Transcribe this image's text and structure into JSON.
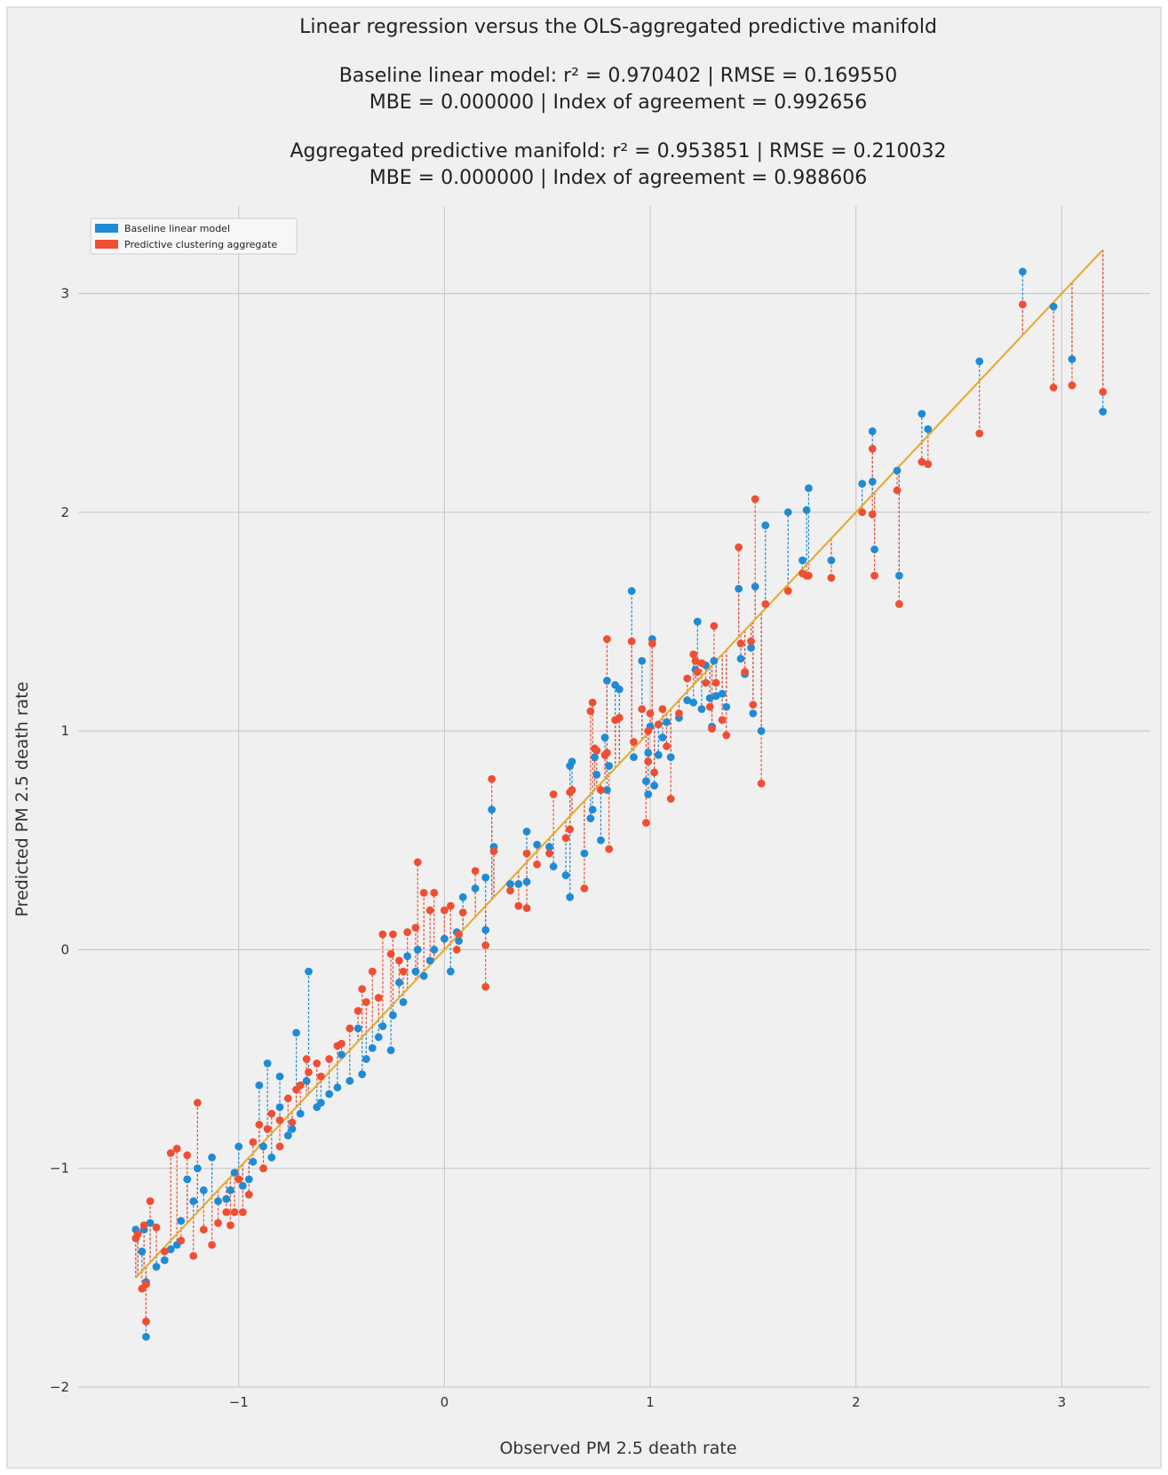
{
  "colors": {
    "figure_bg": "#f0f0f0",
    "border": "#d8d8d8",
    "grid": "#cbcbcb",
    "baseline": "#1f8bd4",
    "cluster": "#f04e33",
    "fit_line": "#e5ae38"
  },
  "chart_data": {
    "type": "scatter",
    "title": "Linear regression versus the OLS-aggregated predictive manifold",
    "subtitle_lines": [
      "Baseline linear model: r² = 0.970402  |  RMSE = 0.169550",
      "MBE = 0.000000  |  Index of agreement = 0.992656",
      "Aggregated predictive manifold: r² = 0.953851  |  RMSE = 0.210032",
      "MBE = 0.000000  |  Index of agreement = 0.988606"
    ],
    "xlabel": "Observed PM 2.5 death rate",
    "ylabel": "Predicted PM 2.5 death rate",
    "xlim": [
      -1.78,
      3.43
    ],
    "ylim": [
      -2.0,
      3.4
    ],
    "xticks": [
      -1,
      0,
      1,
      2,
      3
    ],
    "yticks": [
      -2,
      -1,
      0,
      1,
      2,
      3
    ],
    "xtick_labels": [
      "−1",
      "0",
      "1",
      "2",
      "3"
    ],
    "ytick_labels": [
      "−2",
      "−1",
      "0",
      "1",
      "2",
      "3"
    ],
    "grid": true,
    "legend_position": "upper-left",
    "legend": [
      "Baseline linear model",
      "Predictive clustering aggregate"
    ],
    "fit_line": {
      "x": [
        -1.5,
        3.2
      ],
      "y": [
        -1.5,
        3.2
      ]
    },
    "series": [
      {
        "name": "Baseline linear model",
        "points": [
          [
            2.81,
            3.1
          ],
          [
            2.96,
            2.94
          ],
          [
            3.05,
            2.7
          ],
          [
            3.2,
            2.46
          ],
          [
            2.6,
            2.69
          ],
          [
            2.32,
            2.45
          ],
          [
            2.35,
            2.38
          ],
          [
            2.2,
            2.19
          ],
          [
            2.08,
            2.37
          ],
          [
            2.03,
            2.13
          ],
          [
            2.08,
            2.14
          ],
          [
            2.09,
            1.83
          ],
          [
            2.21,
            1.71
          ],
          [
            1.77,
            2.11
          ],
          [
            1.76,
            2.01
          ],
          [
            1.74,
            1.78
          ],
          [
            1.67,
            2.0
          ],
          [
            1.56,
            1.94
          ],
          [
            1.88,
            1.78
          ],
          [
            1.51,
            1.66
          ],
          [
            1.43,
            1.65
          ],
          [
            0.91,
            1.64
          ],
          [
            1.01,
            1.42
          ],
          [
            1.23,
            1.5
          ],
          [
            0.96,
            1.32
          ],
          [
            1.49,
            1.38
          ],
          [
            1.46,
            1.26
          ],
          [
            1.22,
            1.28
          ],
          [
            1.31,
            1.32
          ],
          [
            1.27,
            1.3
          ],
          [
            1.44,
            1.33
          ],
          [
            1.21,
            1.13
          ],
          [
            1.25,
            1.1
          ],
          [
            1.18,
            1.14
          ],
          [
            1.32,
            1.16
          ],
          [
            1.37,
            1.11
          ],
          [
            1.35,
            1.17
          ],
          [
            1.29,
            1.15
          ],
          [
            1.5,
            1.08
          ],
          [
            1.54,
            1.0
          ],
          [
            1.3,
            1.02
          ],
          [
            1.14,
            1.06
          ],
          [
            1.08,
            1.04
          ],
          [
            1.0,
            1.02
          ],
          [
            1.06,
            0.97
          ],
          [
            0.99,
            0.9
          ],
          [
            1.04,
            0.89
          ],
          [
            1.1,
            0.88
          ],
          [
            0.79,
            1.23
          ],
          [
            0.83,
            1.21
          ],
          [
            0.85,
            1.19
          ],
          [
            0.78,
            0.97
          ],
          [
            0.73,
            0.88
          ],
          [
            0.74,
            0.8
          ],
          [
            0.92,
            0.88
          ],
          [
            0.98,
            0.77
          ],
          [
            1.02,
            0.75
          ],
          [
            0.99,
            0.71
          ],
          [
            0.79,
            0.73
          ],
          [
            0.8,
            0.84
          ],
          [
            0.72,
            0.64
          ],
          [
            0.71,
            0.6
          ],
          [
            0.76,
            0.5
          ],
          [
            0.68,
            0.44
          ],
          [
            0.61,
            0.84
          ],
          [
            0.62,
            0.86
          ],
          [
            0.59,
            0.34
          ],
          [
            0.61,
            0.24
          ],
          [
            0.53,
            0.38
          ],
          [
            0.51,
            0.47
          ],
          [
            0.45,
            0.48
          ],
          [
            0.4,
            0.54
          ],
          [
            0.4,
            0.31
          ],
          [
            0.36,
            0.3
          ],
          [
            0.32,
            0.3
          ],
          [
            0.23,
            0.64
          ],
          [
            0.24,
            0.47
          ],
          [
            0.2,
            0.33
          ],
          [
            0.2,
            0.09
          ],
          [
            0.15,
            0.28
          ],
          [
            0.09,
            0.24
          ],
          [
            0.07,
            0.04
          ],
          [
            0.06,
            0.08
          ],
          [
            0.03,
            -0.1
          ],
          [
            0.0,
            0.05
          ],
          [
            -0.05,
            0.0
          ],
          [
            -0.1,
            -0.12
          ],
          [
            -0.13,
            0.0
          ],
          [
            -0.07,
            -0.05
          ],
          [
            -0.14,
            -0.1
          ],
          [
            -0.18,
            -0.03
          ],
          [
            -0.22,
            -0.15
          ],
          [
            -0.2,
            -0.24
          ],
          [
            -0.25,
            -0.3
          ],
          [
            -0.26,
            -0.46
          ],
          [
            -0.3,
            -0.35
          ],
          [
            -0.32,
            -0.4
          ],
          [
            -0.35,
            -0.45
          ],
          [
            -0.38,
            -0.5
          ],
          [
            -0.4,
            -0.57
          ],
          [
            -0.42,
            -0.36
          ],
          [
            -0.46,
            -0.6
          ],
          [
            -0.5,
            -0.48
          ],
          [
            -0.52,
            -0.63
          ],
          [
            -0.56,
            -0.66
          ],
          [
            -0.6,
            -0.7
          ],
          [
            -0.62,
            -0.72
          ],
          [
            -0.66,
            -0.1
          ],
          [
            -0.67,
            -0.6
          ],
          [
            -0.7,
            -0.75
          ],
          [
            -0.72,
            -0.38
          ],
          [
            -0.74,
            -0.82
          ],
          [
            -0.76,
            -0.85
          ],
          [
            -0.8,
            -0.72
          ],
          [
            -0.8,
            -0.58
          ],
          [
            -0.84,
            -0.95
          ],
          [
            -0.86,
            -0.52
          ],
          [
            -0.88,
            -0.9
          ],
          [
            -0.9,
            -0.62
          ],
          [
            -0.93,
            -0.97
          ],
          [
            -0.95,
            -1.05
          ],
          [
            -0.98,
            -1.08
          ],
          [
            -1.0,
            -0.9
          ],
          [
            -1.02,
            -1.02
          ],
          [
            -1.04,
            -1.1
          ],
          [
            -1.06,
            -1.14
          ],
          [
            -1.1,
            -1.15
          ],
          [
            -1.13,
            -0.95
          ],
          [
            -1.17,
            -1.1
          ],
          [
            -1.2,
            -1.0
          ],
          [
            -1.22,
            -1.15
          ],
          [
            -1.25,
            -1.05
          ],
          [
            -1.28,
            -1.24
          ],
          [
            -1.3,
            -1.35
          ],
          [
            -1.33,
            -1.37
          ],
          [
            -1.36,
            -1.42
          ],
          [
            -1.4,
            -1.45
          ],
          [
            -1.43,
            -1.25
          ],
          [
            -1.46,
            -1.28
          ],
          [
            -1.47,
            -1.38
          ],
          [
            -1.45,
            -1.52
          ],
          [
            -1.45,
            -1.77
          ],
          [
            -1.5,
            -1.28
          ],
          [
            -1.49,
            -1.3
          ]
        ]
      },
      {
        "name": "Predictive clustering aggregate",
        "points": [
          [
            2.81,
            2.95
          ],
          [
            2.96,
            2.57
          ],
          [
            3.05,
            2.58
          ],
          [
            3.2,
            2.55
          ],
          [
            2.6,
            2.36
          ],
          [
            2.32,
            2.23
          ],
          [
            2.35,
            2.22
          ],
          [
            2.2,
            2.1
          ],
          [
            2.08,
            2.29
          ],
          [
            2.03,
            2.0
          ],
          [
            2.08,
            1.99
          ],
          [
            2.09,
            1.71
          ],
          [
            2.21,
            1.58
          ],
          [
            1.77,
            1.71
          ],
          [
            1.76,
            1.71
          ],
          [
            1.74,
            1.72
          ],
          [
            1.67,
            1.64
          ],
          [
            1.56,
            1.58
          ],
          [
            1.88,
            1.7
          ],
          [
            1.51,
            2.06
          ],
          [
            1.43,
            1.84
          ],
          [
            0.91,
            1.41
          ],
          [
            1.01,
            1.4
          ],
          [
            1.23,
            1.27
          ],
          [
            0.96,
            1.1
          ],
          [
            1.49,
            1.41
          ],
          [
            1.46,
            1.27
          ],
          [
            1.22,
            1.32
          ],
          [
            1.31,
            1.48
          ],
          [
            1.27,
            1.22
          ],
          [
            1.44,
            1.4
          ],
          [
            1.21,
            1.35
          ],
          [
            1.25,
            1.31
          ],
          [
            1.18,
            1.24
          ],
          [
            1.32,
            1.22
          ],
          [
            1.37,
            0.98
          ],
          [
            1.35,
            1.05
          ],
          [
            1.29,
            1.11
          ],
          [
            1.5,
            1.12
          ],
          [
            1.54,
            0.76
          ],
          [
            1.3,
            1.01
          ],
          [
            1.14,
            1.08
          ],
          [
            1.08,
            0.93
          ],
          [
            1.0,
            1.08
          ],
          [
            1.06,
            1.1
          ],
          [
            0.99,
            1.0
          ],
          [
            1.04,
            1.03
          ],
          [
            1.1,
            0.69
          ],
          [
            0.79,
            1.42
          ],
          [
            0.83,
            1.05
          ],
          [
            0.85,
            1.06
          ],
          [
            0.78,
            0.89
          ],
          [
            0.73,
            0.92
          ],
          [
            0.74,
            0.91
          ],
          [
            0.92,
            0.95
          ],
          [
            0.98,
            0.58
          ],
          [
            1.02,
            0.81
          ],
          [
            0.99,
            0.86
          ],
          [
            0.79,
            0.9
          ],
          [
            0.8,
            0.46
          ],
          [
            0.72,
            1.13
          ],
          [
            0.71,
            1.09
          ],
          [
            0.76,
            0.73
          ],
          [
            0.68,
            0.28
          ],
          [
            0.61,
            0.72
          ],
          [
            0.62,
            0.73
          ],
          [
            0.59,
            0.51
          ],
          [
            0.61,
            0.55
          ],
          [
            0.53,
            0.71
          ],
          [
            0.51,
            0.44
          ],
          [
            0.45,
            0.39
          ],
          [
            0.4,
            0.44
          ],
          [
            0.4,
            0.19
          ],
          [
            0.36,
            0.2
          ],
          [
            0.32,
            0.27
          ],
          [
            0.23,
            0.78
          ],
          [
            0.24,
            0.45
          ],
          [
            0.2,
            0.02
          ],
          [
            0.2,
            -0.17
          ],
          [
            0.15,
            0.36
          ],
          [
            0.09,
            0.17
          ],
          [
            0.07,
            0.07
          ],
          [
            0.06,
            0.0
          ],
          [
            0.03,
            0.2
          ],
          [
            0.0,
            0.18
          ],
          [
            -0.05,
            0.26
          ],
          [
            -0.1,
            0.26
          ],
          [
            -0.13,
            0.4
          ],
          [
            -0.07,
            0.18
          ],
          [
            -0.14,
            0.1
          ],
          [
            -0.18,
            0.08
          ],
          [
            -0.22,
            -0.05
          ],
          [
            -0.2,
            -0.1
          ],
          [
            -0.25,
            0.07
          ],
          [
            -0.26,
            -0.02
          ],
          [
            -0.3,
            0.07
          ],
          [
            -0.32,
            -0.22
          ],
          [
            -0.35,
            -0.1
          ],
          [
            -0.38,
            -0.24
          ],
          [
            -0.4,
            -0.18
          ],
          [
            -0.42,
            -0.28
          ],
          [
            -0.46,
            -0.36
          ],
          [
            -0.5,
            -0.43
          ],
          [
            -0.52,
            -0.44
          ],
          [
            -0.56,
            -0.5
          ],
          [
            -0.6,
            -0.58
          ],
          [
            -0.62,
            -0.52
          ],
          [
            -0.66,
            -0.56
          ],
          [
            -0.67,
            -0.5
          ],
          [
            -0.7,
            -0.62
          ],
          [
            -0.72,
            -0.64
          ],
          [
            -0.74,
            -0.79
          ],
          [
            -0.76,
            -0.68
          ],
          [
            -0.8,
            -0.9
          ],
          [
            -0.8,
            -0.78
          ],
          [
            -0.84,
            -0.75
          ],
          [
            -0.86,
            -0.82
          ],
          [
            -0.88,
            -1.0
          ],
          [
            -0.9,
            -0.8
          ],
          [
            -0.93,
            -0.88
          ],
          [
            -0.95,
            -1.12
          ],
          [
            -0.98,
            -1.2
          ],
          [
            -1.0,
            -1.05
          ],
          [
            -1.02,
            -1.2
          ],
          [
            -1.04,
            -1.26
          ],
          [
            -1.06,
            -1.2
          ],
          [
            -1.1,
            -1.25
          ],
          [
            -1.13,
            -1.35
          ],
          [
            -1.17,
            -1.28
          ],
          [
            -1.2,
            -0.7
          ],
          [
            -1.22,
            -1.4
          ],
          [
            -1.25,
            -0.94
          ],
          [
            -1.28,
            -1.33
          ],
          [
            -1.3,
            -0.91
          ],
          [
            -1.33,
            -0.93
          ],
          [
            -1.36,
            -1.38
          ],
          [
            -1.4,
            -1.27
          ],
          [
            -1.43,
            -1.15
          ],
          [
            -1.46,
            -1.26
          ],
          [
            -1.47,
            -1.55
          ],
          [
            -1.45,
            -1.53
          ],
          [
            -1.45,
            -1.7
          ],
          [
            -1.5,
            -1.32
          ],
          [
            -1.49,
            -1.3
          ]
        ]
      }
    ]
  }
}
